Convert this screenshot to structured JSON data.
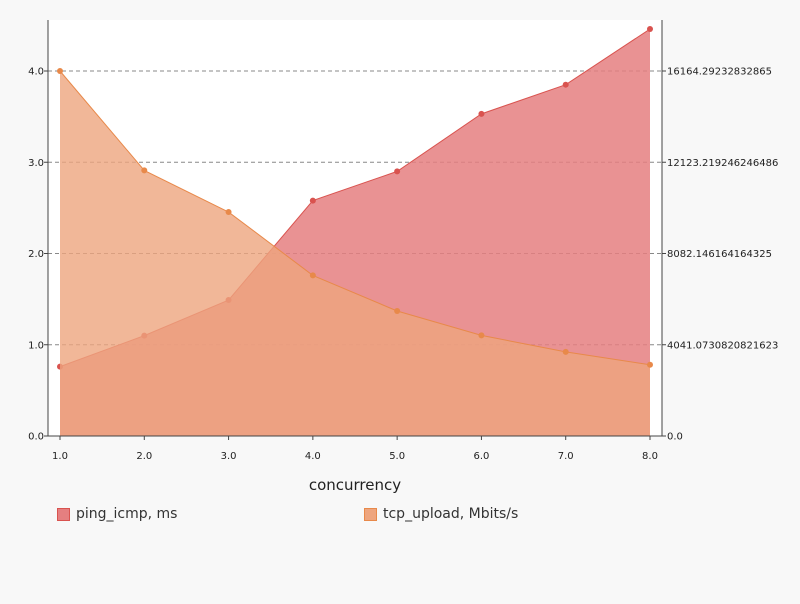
{
  "chart_data": {
    "type": "area",
    "xlabel": "concurrency",
    "x": [
      1.0,
      2.0,
      3.0,
      4.0,
      5.0,
      6.0,
      7.0,
      8.0
    ],
    "x_tick_labels": [
      "1.0",
      "2.0",
      "3.0",
      "4.0",
      "5.0",
      "6.0",
      "7.0",
      "8.0"
    ],
    "xlim": [
      1.0,
      8.0
    ],
    "left_axis": {
      "ylim": [
        0,
        4.0
      ],
      "tick_values": [
        0,
        1,
        2,
        3,
        4
      ],
      "tick_labels": [
        "0.0",
        "1.0",
        "2.0",
        "3.0",
        "4.0"
      ]
    },
    "right_axis": {
      "ylim": [
        0,
        16164.29232832865
      ],
      "tick_values": [
        0,
        4041.0730820821623,
        8082.146164164325,
        12123.219246246486,
        16164.29232832865
      ],
      "tick_labels": [
        "0.0",
        "4041.0730820821623",
        "8082.146164164325",
        "12123.219246246486",
        "16164.29232832865"
      ]
    },
    "grid": "horizontal dashed",
    "legend_position": "bottom",
    "series": [
      {
        "name": "ping_icmp, ms",
        "axis": "left",
        "values": [
          0.76,
          1.1,
          1.49,
          2.58,
          2.9,
          3.53,
          3.85,
          4.46
        ],
        "color": "#d9534f",
        "fill": "#e57f80"
      },
      {
        "name": "tcp_upload, Mbits/s",
        "axis": "right",
        "values": [
          16164.29,
          11761,
          9918,
          7112,
          5536,
          4456,
          3724,
          3153
        ],
        "color": "#e8894a",
        "fill": "#eea57e"
      }
    ]
  }
}
